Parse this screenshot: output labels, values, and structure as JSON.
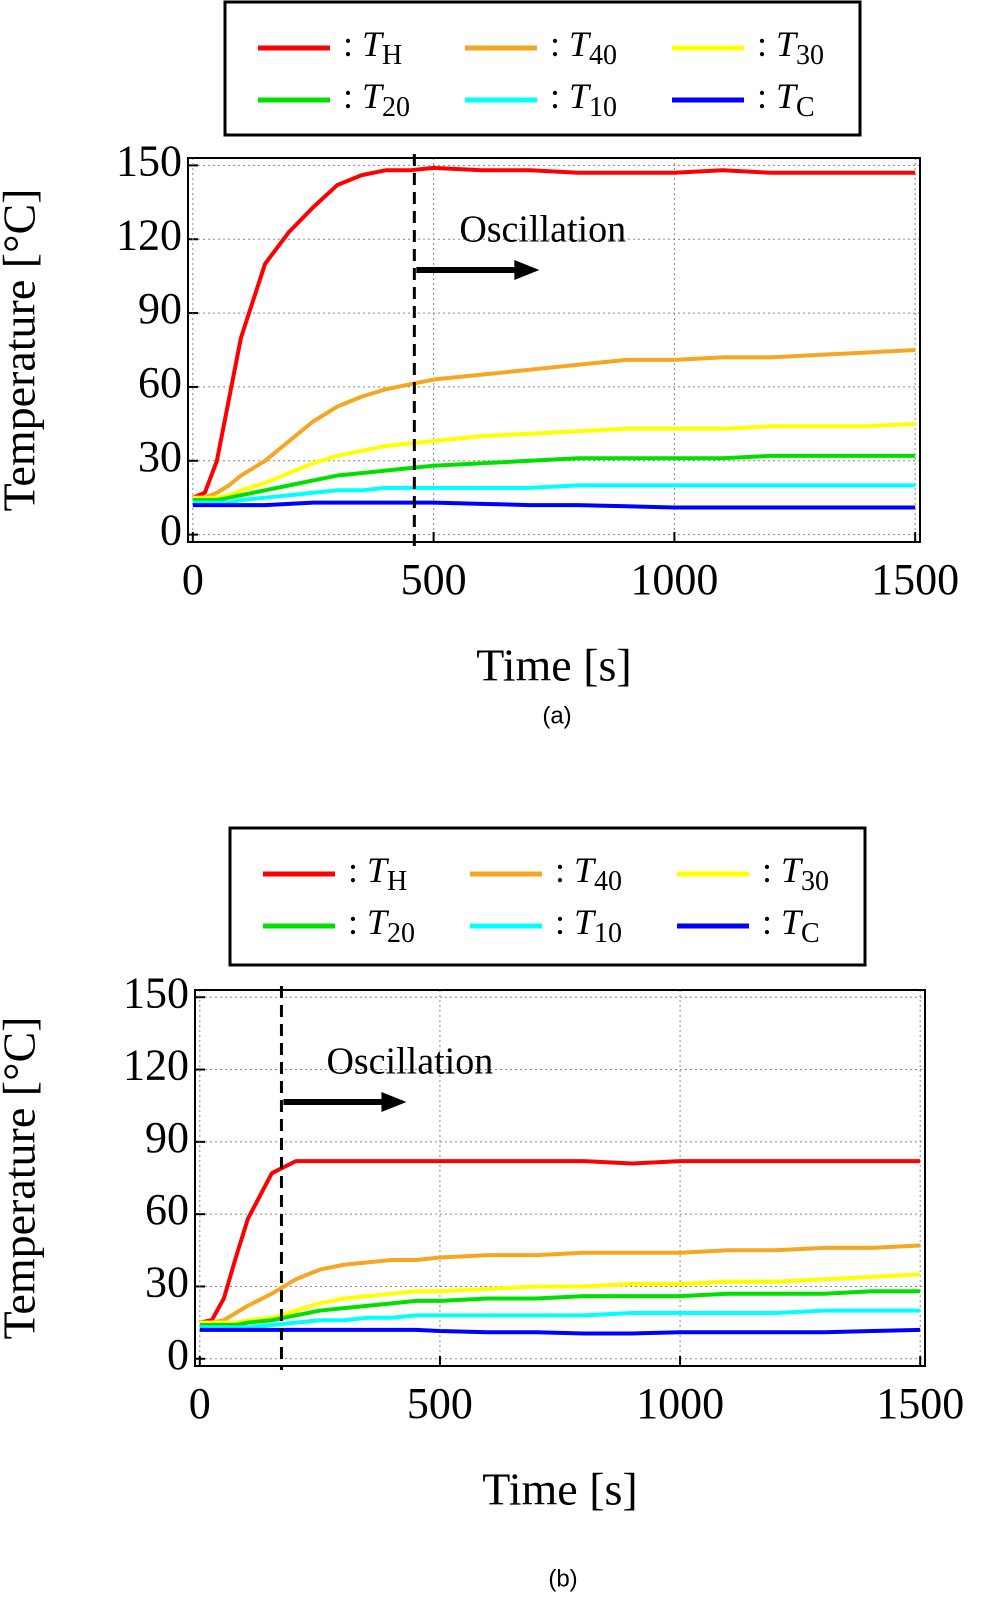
{
  "chart_data": [
    {
      "type": "line",
      "caption": "(a)",
      "xlabel": "Time [s]",
      "ylabel": "Temperature [°C]",
      "xlim": [
        -10,
        1510
      ],
      "ylim": [
        -3,
        153
      ],
      "xticks": [
        0,
        500,
        1000,
        1500
      ],
      "yticks": [
        0,
        30,
        60,
        90,
        120,
        150
      ],
      "grid": true,
      "annotation": {
        "text": "Oscillation",
        "x": 460
      },
      "x": [
        0,
        25,
        50,
        75,
        100,
        150,
        200,
        250,
        300,
        350,
        400,
        450,
        500,
        600,
        700,
        800,
        900,
        1000,
        1100,
        1200,
        1300,
        1400,
        1500
      ],
      "series": [
        {
          "name": ": TH",
          "color": "#ff0000",
          "values": [
            15,
            17,
            30,
            55,
            80,
            110,
            123,
            133,
            142,
            146,
            148,
            148,
            149,
            148,
            148,
            147,
            147,
            147,
            148,
            147,
            147,
            147,
            147
          ]
        },
        {
          "name": ": T40",
          "color": "#f5a623",
          "values": [
            15,
            15,
            17,
            20,
            24,
            30,
            38,
            46,
            52,
            56,
            59,
            61,
            63,
            65,
            67,
            69,
            71,
            71,
            72,
            72,
            73,
            74,
            75
          ]
        },
        {
          "name": ": T30",
          "color": "#ffff00",
          "values": [
            15,
            15,
            15,
            16,
            18,
            21,
            25,
            29,
            32,
            34,
            36,
            37,
            38,
            40,
            41,
            42,
            43,
            43,
            43,
            44,
            44,
            44,
            45
          ]
        },
        {
          "name": ": T20",
          "color": "#00e000",
          "values": [
            14,
            14,
            14,
            15,
            16,
            18,
            20,
            22,
            24,
            25,
            26,
            27,
            28,
            29,
            30,
            31,
            31,
            31,
            31,
            32,
            32,
            32,
            32
          ]
        },
        {
          "name": ": T10",
          "color": "#00ffff",
          "values": [
            13,
            13,
            13,
            13,
            14,
            15,
            16,
            17,
            18,
            18,
            19,
            19,
            19,
            19,
            19,
            20,
            20,
            20,
            20,
            20,
            20,
            20,
            20
          ]
        },
        {
          "name": ": TC",
          "color": "#0000ff",
          "values": [
            12,
            12,
            12,
            12,
            12,
            12,
            12.5,
            13,
            13,
            13,
            13,
            13,
            13,
            12.5,
            12,
            12,
            11.5,
            11,
            11,
            11,
            11,
            11,
            11
          ]
        }
      ]
    },
    {
      "type": "line",
      "caption": "(b)",
      "xlabel": "Time [s]",
      "ylabel": "Temperature [°C]",
      "xlim": [
        -10,
        1510
      ],
      "ylim": [
        -3,
        153
      ],
      "xticks": [
        0,
        500,
        1000,
        1500
      ],
      "yticks": [
        0,
        30,
        60,
        90,
        120,
        150
      ],
      "grid": true,
      "annotation": {
        "text": "Oscillation",
        "x": 170
      },
      "x": [
        0,
        25,
        50,
        75,
        100,
        150,
        200,
        250,
        300,
        350,
        400,
        450,
        500,
        600,
        700,
        800,
        900,
        1000,
        1100,
        1200,
        1300,
        1400,
        1500
      ],
      "series": [
        {
          "name": ": TH",
          "color": "#ff0000",
          "values": [
            15,
            16,
            25,
            42,
            58,
            77,
            82,
            82,
            82,
            82,
            82,
            82,
            82,
            82,
            82,
            82,
            81,
            82,
            82,
            82,
            82,
            82,
            82
          ]
        },
        {
          "name": ": T40",
          "color": "#f5a623",
          "values": [
            15,
            15,
            16,
            19,
            22,
            27,
            33,
            37,
            39,
            40,
            41,
            41,
            42,
            43,
            43,
            44,
            44,
            44,
            45,
            45,
            46,
            46,
            47
          ]
        },
        {
          "name": ": T30",
          "color": "#ffff00",
          "values": [
            15,
            15,
            15,
            15,
            16,
            17,
            20,
            23,
            25,
            26,
            27,
            28,
            28,
            29,
            30,
            30,
            31,
            31,
            32,
            32,
            33,
            34,
            35
          ]
        },
        {
          "name": ": T20",
          "color": "#00e000",
          "values": [
            14,
            14,
            14,
            14,
            15,
            16,
            18,
            20,
            21,
            22,
            23,
            24,
            24,
            25,
            25,
            26,
            26,
            26,
            27,
            27,
            27,
            28,
            28
          ]
        },
        {
          "name": ": T10",
          "color": "#00ffff",
          "values": [
            13,
            13,
            13,
            13,
            13,
            14,
            15,
            16,
            16,
            17,
            17,
            18,
            18,
            18,
            18,
            18,
            19,
            19,
            19,
            19,
            20,
            20,
            20
          ]
        },
        {
          "name": ": TC",
          "color": "#0000ff",
          "values": [
            12,
            12,
            12,
            12,
            12,
            12,
            12,
            12,
            12,
            12,
            12,
            12,
            11.5,
            11,
            11,
            10.5,
            10.5,
            11,
            11,
            11,
            11,
            11.5,
            12
          ]
        }
      ]
    }
  ]
}
